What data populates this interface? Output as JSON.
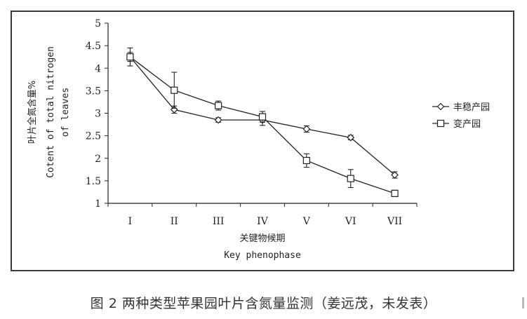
{
  "caption": "图 2  两种类型苹果园叶片含氮量监测（姜远茂，未发表）",
  "chart_data": {
    "type": "line",
    "categories": [
      "I",
      "II",
      "III",
      "IV",
      "V",
      "VI",
      "VII"
    ],
    "xlabel_cn": "关键物候期",
    "xlabel_en": "Key phenophase",
    "ylabel_cn": "叶片全氮含量%",
    "ylabel_en_1": "Cotent of total nitrogen",
    "ylabel_en_2": "of leaves",
    "ylim": [
      1,
      5
    ],
    "yticks": [
      "1",
      "1.5",
      "2",
      "2.5",
      "3",
      "3.5",
      "4",
      "4.5",
      "5"
    ],
    "legend_position": "right",
    "grid": false,
    "series": [
      {
        "name": "丰稳产园",
        "marker": "diamond",
        "values": [
          4.25,
          3.08,
          2.85,
          2.85,
          2.65,
          2.46,
          1.63
        ],
        "errors": [
          0.1,
          0.08,
          0.05,
          0.12,
          0.07,
          0.05,
          0.07
        ]
      },
      {
        "name": "变产园",
        "marker": "square",
        "values": [
          4.25,
          3.51,
          3.17,
          2.92,
          1.95,
          1.55,
          1.22
        ],
        "errors": [
          0.2,
          0.4,
          0.1,
          0.12,
          0.15,
          0.2,
          0.07
        ]
      }
    ]
  }
}
